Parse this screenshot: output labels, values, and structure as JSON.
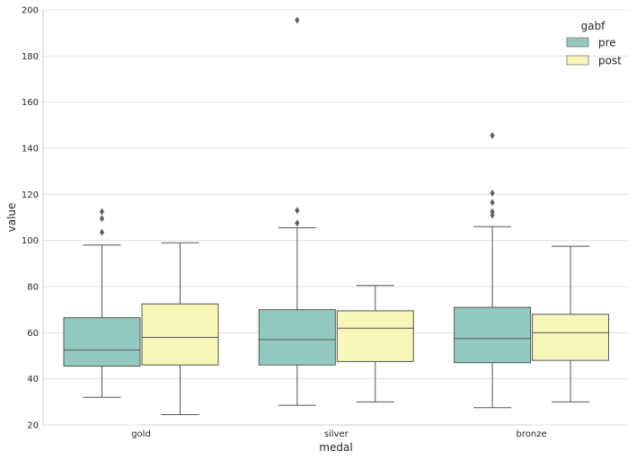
{
  "chart_data": {
    "type": "box",
    "xlabel": "medal",
    "ylabel": "value",
    "ylim": [
      20,
      200
    ],
    "yticks": [
      "20",
      "40",
      "60",
      "80",
      "100",
      "120",
      "140",
      "160",
      "180",
      "200"
    ],
    "categories": [
      "gold",
      "silver",
      "bronze"
    ],
    "grid": "horizontal",
    "legend": {
      "title": "gabf",
      "position": "top-right"
    },
    "series": [
      {
        "name": "pre",
        "color": "#94c9bf",
        "boxes": [
          {
            "whislo": 32,
            "q1": 45.5,
            "median": 52.5,
            "q3": 66.5,
            "whishi": 98,
            "fliers": [
              103.5,
              109.5,
              112.5
            ]
          },
          {
            "whislo": 28.5,
            "q1": 46,
            "median": 57,
            "q3": 70,
            "whishi": 105.5,
            "fliers": [
              107.5,
              113,
              195.5
            ]
          },
          {
            "whislo": 27.5,
            "q1": 47,
            "median": 57.5,
            "q3": 71,
            "whishi": 106,
            "fliers": [
              111,
              112.5,
              116.5,
              120.5,
              145.5
            ]
          }
        ]
      },
      {
        "name": "post",
        "color": "#f6f6b9",
        "boxes": [
          {
            "whislo": 24.5,
            "q1": 46,
            "median": 58,
            "q3": 72.5,
            "whishi": 99,
            "fliers": []
          },
          {
            "whislo": 30,
            "q1": 47.5,
            "median": 62,
            "q3": 69.5,
            "whishi": 80.5,
            "fliers": []
          },
          {
            "whislo": 30,
            "q1": 48,
            "median": 60,
            "q3": 68,
            "whishi": 97.5,
            "fliers": []
          }
        ]
      }
    ]
  }
}
